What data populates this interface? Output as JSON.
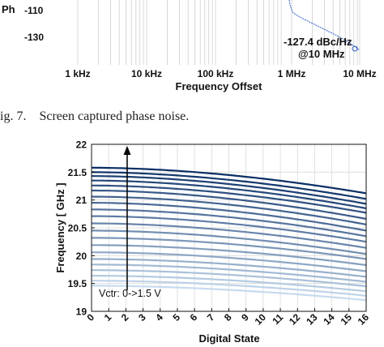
{
  "top_figure": {
    "ylabel_fragment": "Ph",
    "xlabel": "Frequency Offset",
    "chart_data": {
      "type": "line",
      "ytick_labels": [
        "-110",
        "-130"
      ],
      "xtick_labels": [
        "1 kHz",
        "10 kHz",
        "100 kHz",
        "1 MHz",
        "10 MHz"
      ],
      "marker": {
        "value_label": "-127.4 dBc/Hz",
        "offset_label": "@10 MHz",
        "value": -127.4,
        "offset_hz": 10000000
      },
      "series_color": "#2f5fc4"
    }
  },
  "caption": {
    "label": "ig. 7.",
    "text": "Screen captured phase noise."
  },
  "bottom_figure": {
    "chart_data": {
      "type": "line",
      "xlabel": "Digital State",
      "ylabel": "Frequency [ GHz ]",
      "xlim": [
        0,
        16
      ],
      "ylim": [
        19,
        22
      ],
      "grid": true,
      "xticks": [
        "0",
        "1",
        "2",
        "3",
        "4",
        "5",
        "6",
        "7",
        "8",
        "9",
        "10",
        "11",
        "12",
        "13",
        "14",
        "15",
        "16"
      ],
      "yticks": [
        "19",
        "19.5",
        "20",
        "20.5",
        "21",
        "21.5",
        "22"
      ],
      "annotation": {
        "text": "Vctr: 0->1.5 V",
        "arrow": "up"
      },
      "curves_start_end": [
        [
          21.58,
          21.12
        ],
        [
          21.5,
          21.02
        ],
        [
          21.43,
          20.93
        ],
        [
          21.35,
          20.85
        ],
        [
          21.26,
          20.77
        ],
        [
          21.17,
          20.66
        ],
        [
          21.06,
          20.56
        ],
        [
          20.95,
          20.45
        ],
        [
          20.83,
          20.35
        ],
        [
          20.71,
          20.25
        ],
        [
          20.58,
          20.14
        ],
        [
          20.45,
          20.03
        ],
        [
          20.32,
          19.94
        ],
        [
          20.19,
          19.83
        ],
        [
          20.06,
          19.72
        ],
        [
          19.94,
          19.62
        ],
        [
          19.84,
          19.53
        ],
        [
          19.74,
          19.45
        ],
        [
          19.64,
          19.36
        ],
        [
          19.55,
          19.28
        ],
        [
          19.46,
          19.2
        ]
      ],
      "color_dark": "#0b2f66",
      "color_light": "#c6dbef"
    }
  }
}
